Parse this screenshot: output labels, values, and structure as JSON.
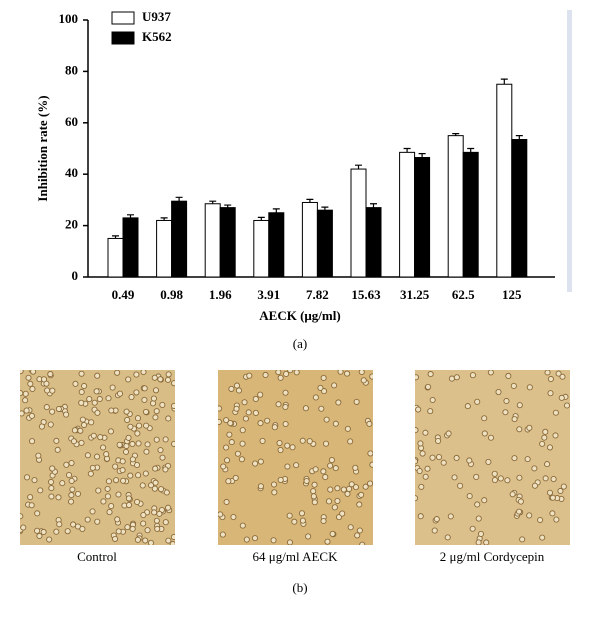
{
  "chart_data": {
    "type": "bar",
    "xlabel": "AECK (μg/ml)",
    "ylabel": "Inhibition rate (%)",
    "categories": [
      "0.49",
      "0.98",
      "1.96",
      "3.91",
      "7.82",
      "15.63",
      "31.25",
      "62.5",
      "125"
    ],
    "series": [
      {
        "name": "U937",
        "color": "#ffffff",
        "values": [
          15,
          22,
          28.5,
          22,
          29,
          42,
          48.5,
          55,
          75
        ],
        "errors": [
          1,
          1,
          1,
          1.2,
          1.2,
          1.5,
          1.5,
          0.8,
          2
        ]
      },
      {
        "name": "K562",
        "color": "#000000",
        "values": [
          23,
          29.5,
          27,
          25,
          26,
          27,
          46.5,
          48.5,
          53.5
        ],
        "errors": [
          1.2,
          1.5,
          1,
          1.5,
          1.2,
          1.5,
          1.5,
          1.5,
          1.5
        ]
      }
    ],
    "ylim": [
      0,
      100
    ],
    "yticks": [
      0,
      20,
      40,
      60,
      80,
      100
    ],
    "grid": false,
    "legend": "top-left"
  },
  "figure": {
    "panel_a": "(a)",
    "panel_b": "(b)",
    "images": [
      {
        "caption": "Control"
      },
      {
        "caption": "64 μg/ml AECK"
      },
      {
        "caption": "2 μg/ml Cordycepin"
      }
    ]
  }
}
